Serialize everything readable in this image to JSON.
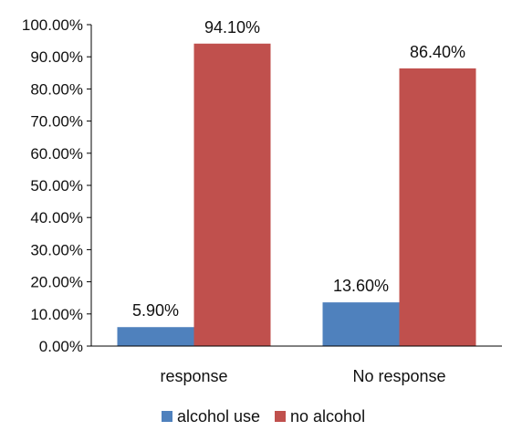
{
  "chart_data": {
    "type": "bar",
    "categories": [
      "response",
      "No response"
    ],
    "series": [
      {
        "name": "alcohol use",
        "values": [
          5.9,
          13.6
        ],
        "labels": [
          "5.90%",
          "13.60%"
        ],
        "color": "#4F81BD"
      },
      {
        "name": "no alcohol",
        "values": [
          94.1,
          86.4
        ],
        "labels": [
          "94.10%",
          "86.40%"
        ],
        "color": "#C0504D"
      }
    ],
    "ylim": [
      0,
      100
    ],
    "yticks": [
      0,
      10,
      20,
      30,
      40,
      50,
      60,
      70,
      80,
      90,
      100
    ],
    "ytick_labels": [
      "0.00%",
      "10.00%",
      "20.00%",
      "30.00%",
      "40.00%",
      "50.00%",
      "60.00%",
      "70.00%",
      "80.00%",
      "90.00%",
      "100.00%"
    ],
    "grid": false,
    "legend": "bottom",
    "axis_color": "#000000"
  }
}
